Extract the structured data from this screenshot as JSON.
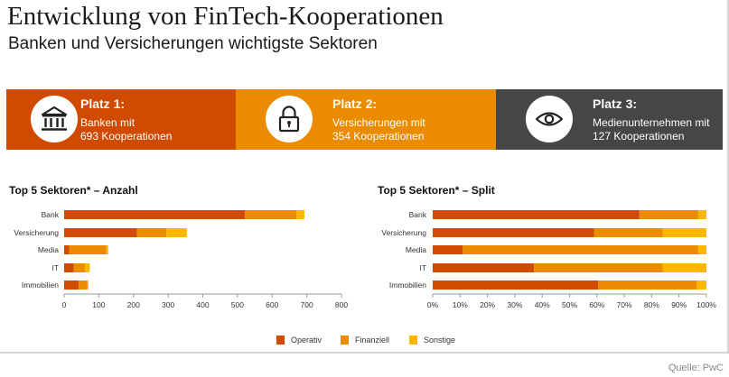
{
  "title": "Entwicklung von FinTech-Kooperationen",
  "subtitle": "Banken und Versicherungen wichtigste Sektoren",
  "source": "Quelle: PwC",
  "banners": [
    {
      "place": "Platz 1:",
      "line1": "Banken mit",
      "line2": "693 Kooperationen",
      "color": "#d04a02",
      "icon": "bank-icon"
    },
    {
      "place": "Platz 2:",
      "line1": "Versicherungen mit",
      "line2": "354 Kooperationen",
      "color": "#eb8c00",
      "icon": "lock-icon"
    },
    {
      "place": "Platz 3:",
      "line1": "Medienunternehmen mit",
      "line2": "127 Kooperationen",
      "color": "#464646",
      "icon": "eye-icon"
    }
  ],
  "legend": [
    {
      "label": "Operativ",
      "color": "#d04a02"
    },
    {
      "label": "Finanziell",
      "color": "#eb8c00"
    },
    {
      "label": "Sonstige",
      "color": "#ffb600"
    }
  ],
  "chart_data": [
    {
      "type": "bar",
      "orientation": "horizontal",
      "stacked": true,
      "title": "Top 5 Sektoren* – Anzahl",
      "categories": [
        "Bank",
        "Versicherung",
        "Media",
        "IT",
        "Immobilien"
      ],
      "series": [
        {
          "name": "Operativ",
          "color": "#d04a02",
          "values": [
            522,
            210,
            15,
            28,
            42
          ]
        },
        {
          "name": "Finanziell",
          "color": "#eb8c00",
          "values": [
            148,
            85,
            107,
            32,
            25
          ]
        },
        {
          "name": "Sonstige",
          "color": "#ffb600",
          "values": [
            23,
            59,
            5,
            14,
            3
          ]
        }
      ],
      "xlim": [
        0,
        800
      ],
      "xticks": [
        "0",
        "100",
        "200",
        "300",
        "400",
        "500",
        "600",
        "700",
        "800"
      ],
      "grid": false,
      "legend": "bottom"
    },
    {
      "type": "bar",
      "orientation": "horizontal",
      "stacked": true,
      "percent": true,
      "title": "Top 5 Sektoren* – Split",
      "categories": [
        "Bank",
        "Versicherung",
        "Media",
        "IT",
        "Immobilien"
      ],
      "series": [
        {
          "name": "Operativ",
          "color": "#d04a02",
          "values": [
            75.5,
            59,
            11,
            37,
            60.5
          ]
        },
        {
          "name": "Finanziell",
          "color": "#eb8c00",
          "values": [
            21.5,
            25,
            86,
            47,
            36
          ]
        },
        {
          "name": "Sonstige",
          "color": "#ffb600",
          "values": [
            3,
            16,
            3,
            16,
            3.5
          ]
        }
      ],
      "xlim": [
        0,
        100
      ],
      "xticks": [
        "0%",
        "10%",
        "20%",
        "30%",
        "40%",
        "50%",
        "60%",
        "70%",
        "80%",
        "90%",
        "100%"
      ],
      "grid": false,
      "legend": "bottom"
    }
  ]
}
